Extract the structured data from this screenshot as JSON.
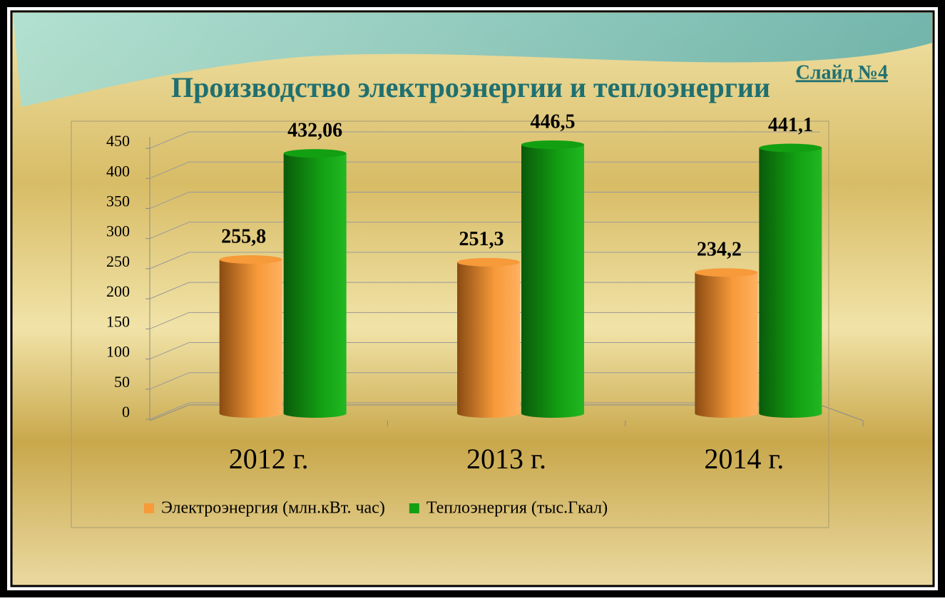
{
  "slide_label": "Слайд №4",
  "chart_data": {
    "type": "bar3d",
    "title": "Производство  электроэнергии и теплоэнергии",
    "categories": [
      "2012 г.",
      "2013 г.",
      "2014 г."
    ],
    "series": [
      {
        "name": "Электроэнергия (млн.кВт. час)",
        "color": "#f79a3a",
        "values": [
          255.8,
          251.3,
          234.2
        ],
        "value_labels": [
          "255,8",
          "251,3",
          "234,2"
        ]
      },
      {
        "name": "Теплоэнергия (тыс.Гкал)",
        "color": "#12a012",
        "values": [
          432.06,
          446.5,
          441.1
        ],
        "value_labels": [
          "432,06",
          "446,5",
          "441,1"
        ]
      }
    ],
    "ylim": [
      0,
      450
    ],
    "yticks": [
      0,
      50,
      100,
      150,
      200,
      250,
      300,
      350,
      400,
      450
    ],
    "grid": true,
    "legend": "bottom"
  }
}
